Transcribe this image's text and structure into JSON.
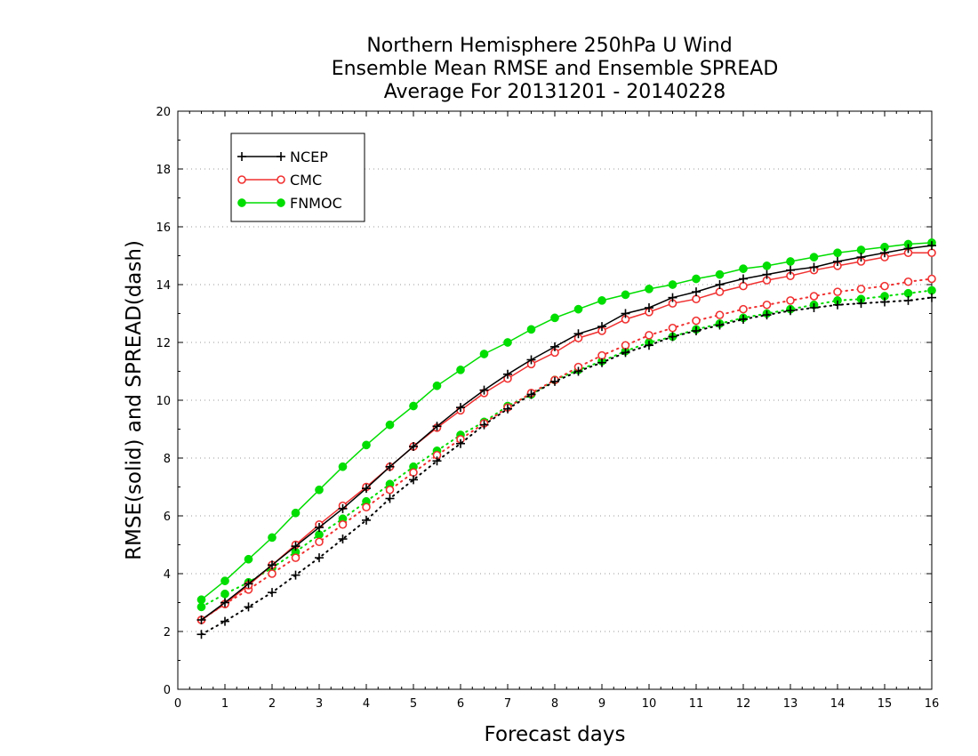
{
  "chart_data": {
    "type": "line",
    "title_lines": [
      "Northern Hemisphere 250hPa U Wind",
      "Ensemble Mean RMSE and Ensemble SPREAD",
      "Average For 20131201 - 20140228"
    ],
    "xlabel": "Forecast days",
    "ylabel": "RMSE(solid) and SPREAD(dash)",
    "xlim": [
      0,
      16
    ],
    "ylim": [
      0,
      20
    ],
    "xticks": [
      "0",
      "1",
      "2",
      "3",
      "4",
      "5",
      "6",
      "7",
      "8",
      "9",
      "10",
      "11",
      "12",
      "13",
      "14",
      "15",
      "16"
    ],
    "yticks": [
      "0",
      "2",
      "4",
      "6",
      "8",
      "10",
      "12",
      "14",
      "16",
      "18",
      "20"
    ],
    "grid": true,
    "legend_position": "top-left",
    "x": [
      0.5,
      1,
      1.5,
      2,
      2.5,
      3,
      3.5,
      4,
      4.5,
      5,
      5.5,
      6,
      6.5,
      7,
      7.5,
      8,
      8.5,
      9,
      9.5,
      10,
      10.5,
      11,
      11.5,
      12,
      12.5,
      13,
      13.5,
      14,
      14.5,
      15,
      15.5,
      16
    ],
    "series": [
      {
        "name": "NCEP",
        "color": "#000000",
        "marker": "plus",
        "rmse": [
          2.4,
          3.0,
          3.65,
          4.3,
          4.95,
          5.6,
          6.25,
          6.95,
          7.7,
          8.4,
          9.1,
          9.75,
          10.35,
          10.9,
          11.4,
          11.85,
          12.3,
          12.55,
          13.0,
          13.2,
          13.55,
          13.75,
          14.0,
          14.2,
          14.35,
          14.5,
          14.6,
          14.8,
          14.95,
          15.1,
          15.25,
          15.35
        ],
        "spread": [
          1.9,
          2.35,
          2.85,
          3.35,
          3.95,
          4.55,
          5.2,
          5.85,
          6.6,
          7.25,
          7.9,
          8.5,
          9.15,
          9.7,
          10.2,
          10.65,
          11.0,
          11.3,
          11.65,
          11.9,
          12.2,
          12.4,
          12.6,
          12.8,
          12.95,
          13.1,
          13.2,
          13.3,
          13.35,
          13.4,
          13.45,
          13.55
        ]
      },
      {
        "name": "CMC",
        "color": "#f03030",
        "marker": "open-circle",
        "rmse": [
          2.4,
          2.95,
          3.6,
          4.3,
          5.0,
          5.7,
          6.35,
          7.0,
          7.7,
          8.4,
          9.05,
          9.65,
          10.25,
          10.75,
          11.25,
          11.65,
          12.15,
          12.4,
          12.8,
          13.05,
          13.35,
          13.5,
          13.75,
          13.95,
          14.15,
          14.3,
          14.5,
          14.65,
          14.8,
          14.95,
          15.1,
          15.1
        ],
        "spread": [
          2.4,
          2.95,
          3.45,
          4.0,
          4.55,
          5.1,
          5.7,
          6.3,
          6.9,
          7.5,
          8.1,
          8.65,
          9.2,
          9.75,
          10.25,
          10.7,
          11.15,
          11.55,
          11.9,
          12.25,
          12.5,
          12.75,
          12.95,
          13.15,
          13.3,
          13.45,
          13.6,
          13.75,
          13.85,
          13.95,
          14.1,
          14.2
        ]
      },
      {
        "name": "FNMOC",
        "color": "#00dd00",
        "marker": "filled-circle",
        "rmse": [
          3.1,
          3.75,
          4.5,
          5.25,
          6.1,
          6.9,
          7.7,
          8.45,
          9.15,
          9.8,
          10.5,
          11.05,
          11.6,
          12.0,
          12.45,
          12.85,
          13.15,
          13.45,
          13.65,
          13.85,
          14.0,
          14.2,
          14.35,
          14.55,
          14.65,
          14.8,
          14.95,
          15.1,
          15.2,
          15.3,
          15.4,
          15.45
        ],
        "spread": [
          2.85,
          3.3,
          3.7,
          4.2,
          4.75,
          5.35,
          5.9,
          6.5,
          7.1,
          7.7,
          8.25,
          8.8,
          9.25,
          9.8,
          10.2,
          10.7,
          11.05,
          11.35,
          11.7,
          12.0,
          12.2,
          12.45,
          12.65,
          12.85,
          13.0,
          13.15,
          13.3,
          13.45,
          13.5,
          13.6,
          13.7,
          13.8
        ]
      }
    ]
  }
}
